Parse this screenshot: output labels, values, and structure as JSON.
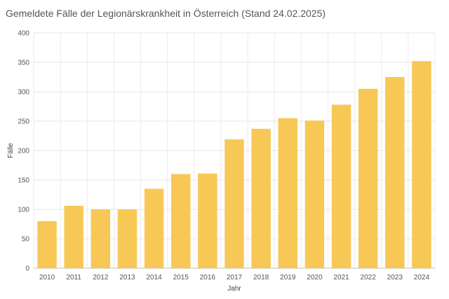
{
  "chart_data": {
    "type": "bar",
    "title": "Gemeldete Fälle der Legionärskrankheit in Österreich (Stand 24.02.2025)",
    "xlabel": "Jahr",
    "ylabel": "Fälle",
    "categories": [
      "2010",
      "2011",
      "2012",
      "2013",
      "2014",
      "2015",
      "2016",
      "2017",
      "2018",
      "2019",
      "2020",
      "2021",
      "2022",
      "2023",
      "2024"
    ],
    "values": [
      80,
      106,
      100,
      100,
      135,
      160,
      161,
      219,
      237,
      255,
      251,
      278,
      305,
      325,
      352
    ],
    "ylim": [
      0,
      400
    ],
    "yticks": [
      0,
      50,
      100,
      150,
      200,
      250,
      300,
      350,
      400
    ],
    "grid": true,
    "bar_color": "#f7c855"
  }
}
